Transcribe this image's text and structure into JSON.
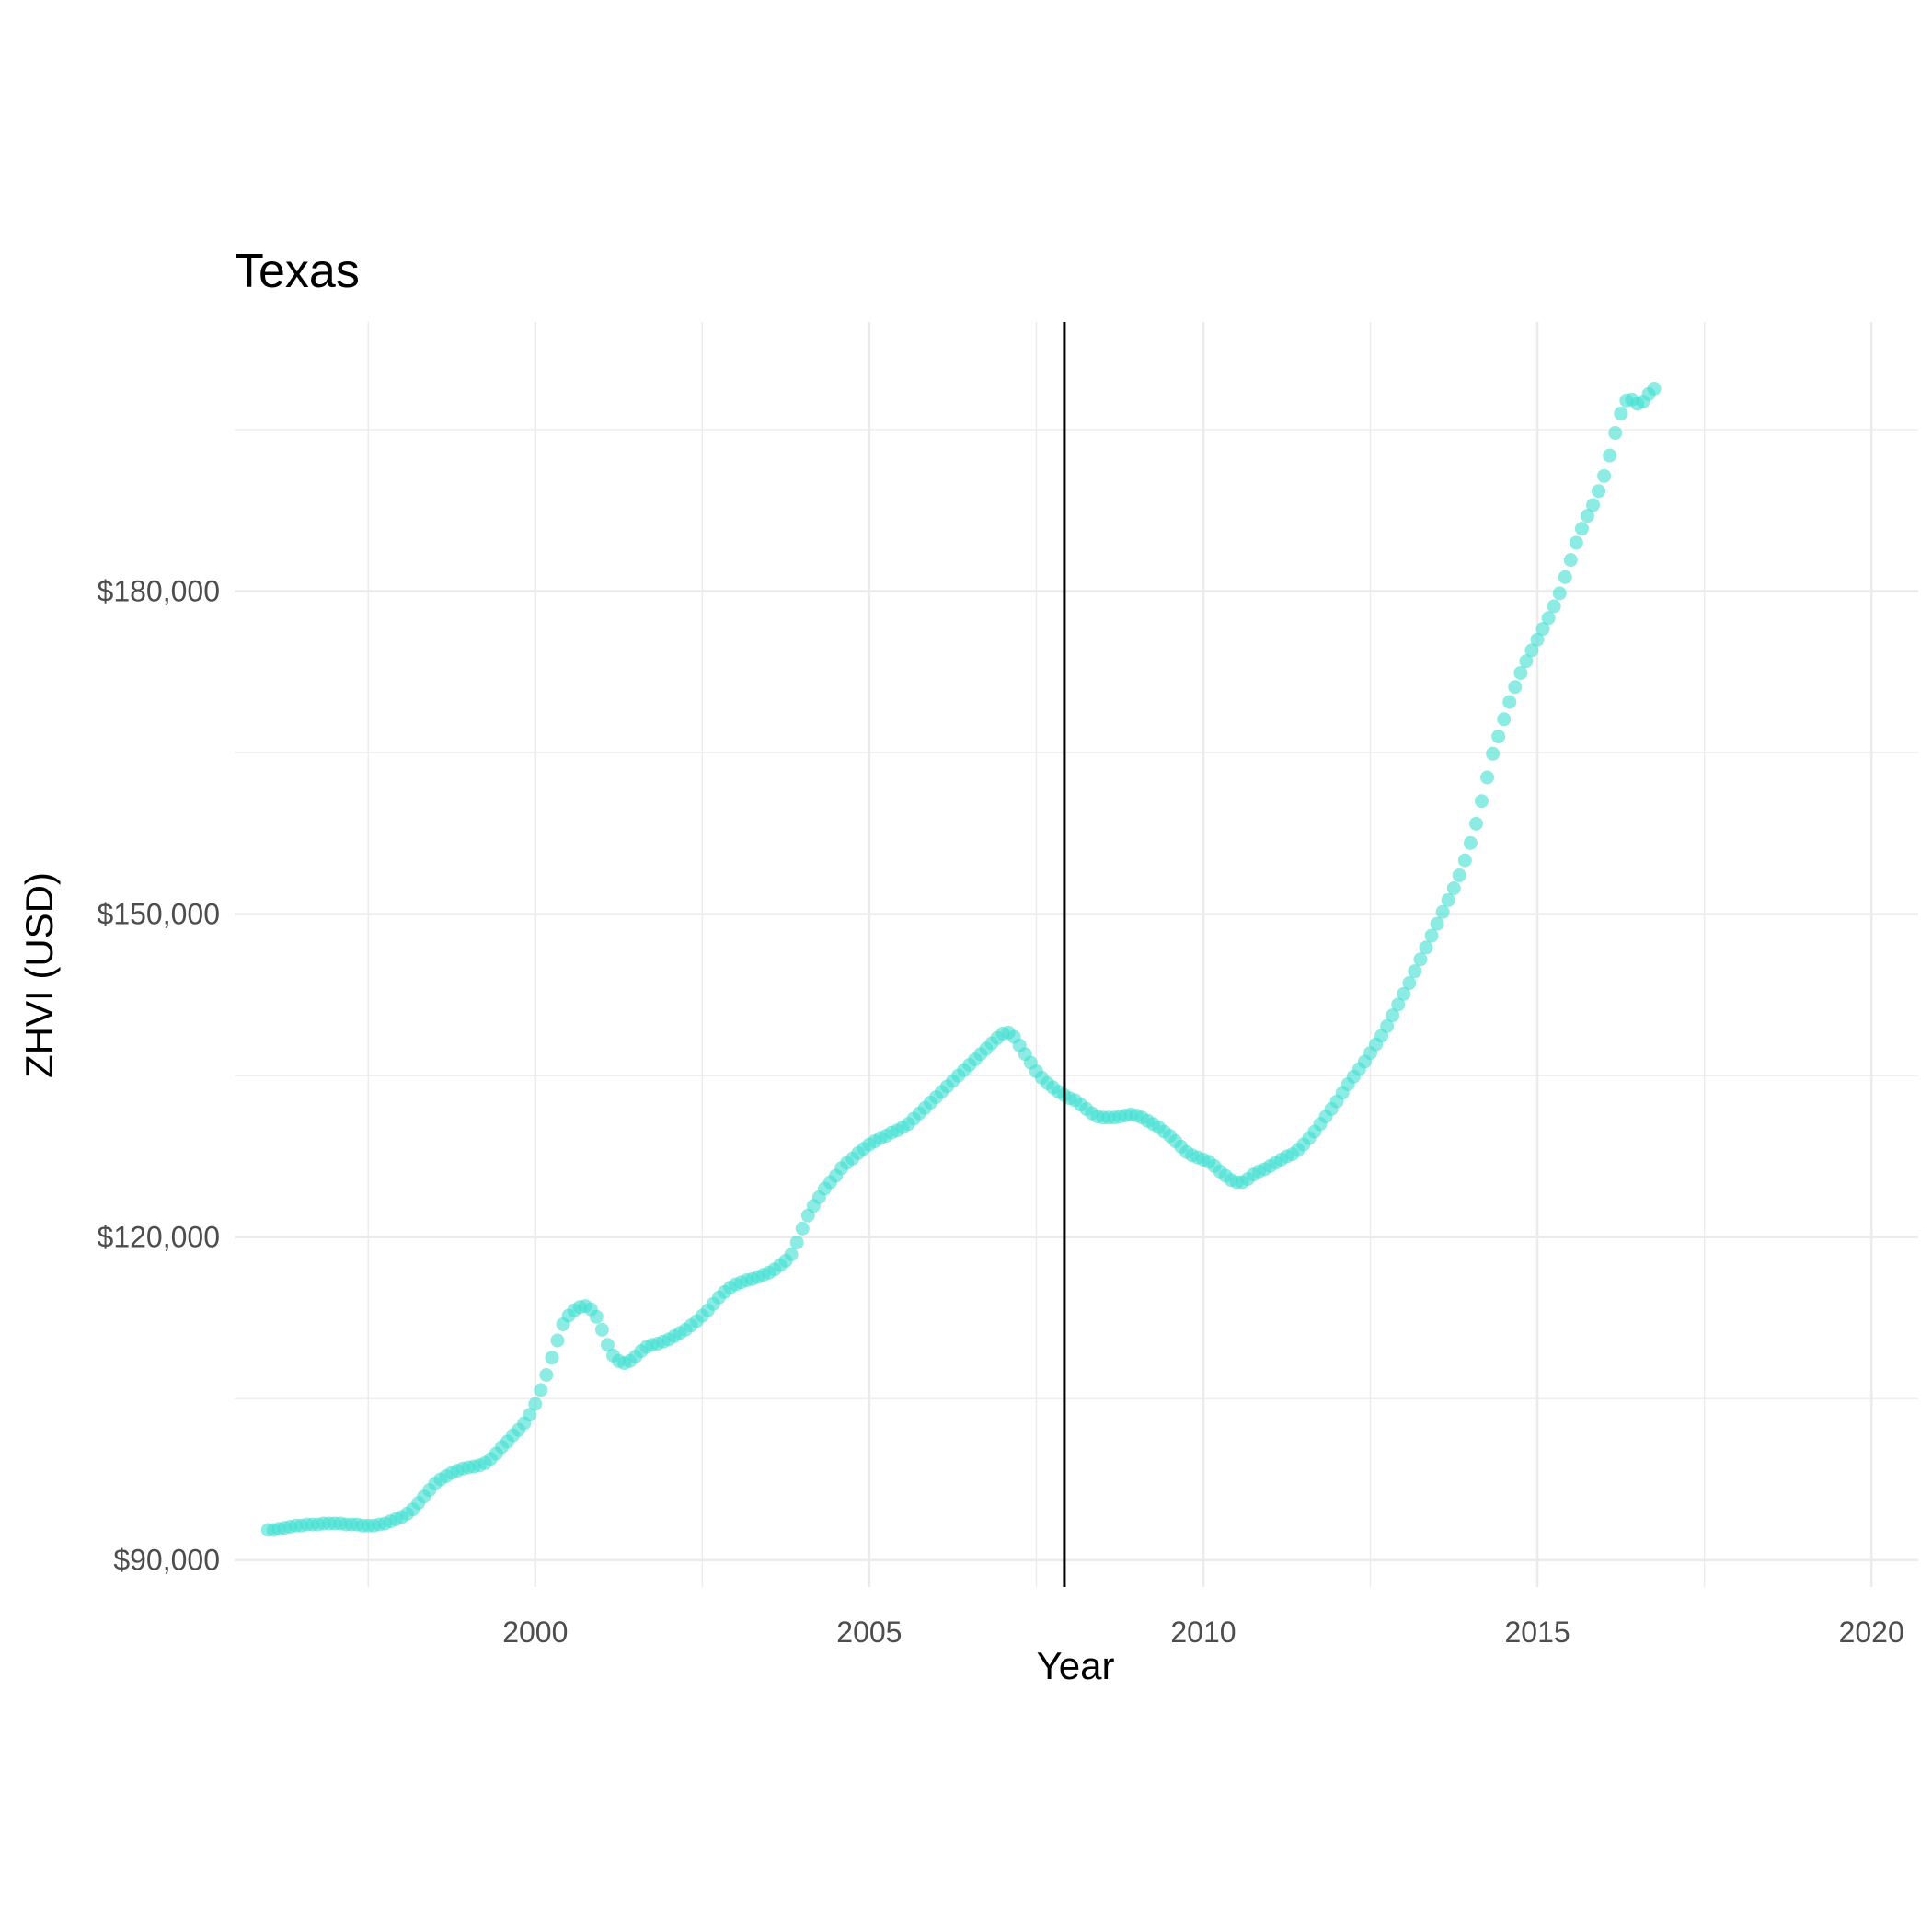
{
  "chart_data": {
    "type": "scatter",
    "title": "Texas",
    "xlabel": "Year",
    "ylabel": "ZHVI (USD)",
    "xlim": [
      1995.5,
      2020.7
    ],
    "ylim": [
      87500,
      205000
    ],
    "x_ticks": [
      2000,
      2005,
      2010,
      2015,
      2020
    ],
    "x_tick_labels": [
      "2000",
      "2005",
      "2010",
      "2015",
      "2020"
    ],
    "y_ticks": [
      90000,
      120000,
      150000,
      180000
    ],
    "y_tick_labels": [
      "$90,000",
      "$120,000",
      "$150,000",
      "$180,000"
    ],
    "grid": true,
    "point_color": "#40E0D0",
    "point_opacity": 0.6,
    "vline_x": 2007.92,
    "vline_color": "#000000",
    "frequency": "monthly",
    "x_start": 1996.0,
    "x_step": 0.08333,
    "values": [
      92800,
      92800,
      92900,
      93000,
      93100,
      93200,
      93200,
      93300,
      93300,
      93300,
      93400,
      93400,
      93400,
      93400,
      93300,
      93300,
      93300,
      93200,
      93200,
      93200,
      93300,
      93400,
      93600,
      93800,
      94000,
      94300,
      94700,
      95300,
      95900,
      96500,
      97100,
      97500,
      97800,
      98100,
      98300,
      98500,
      98600,
      98700,
      98800,
      99000,
      99400,
      99900,
      100500,
      101000,
      101600,
      102100,
      102700,
      103500,
      104500,
      105800,
      107200,
      108800,
      110400,
      111900,
      112700,
      113200,
      113500,
      113600,
      113300,
      112600,
      111400,
      110000,
      109000,
      108500,
      108300,
      108500,
      108900,
      109400,
      109800,
      110000,
      110100,
      110300,
      110500,
      110800,
      111100,
      111400,
      111800,
      112200,
      112700,
      113200,
      113800,
      114400,
      114900,
      115300,
      115600,
      115800,
      116000,
      116100,
      116300,
      116500,
      116700,
      117000,
      117400,
      117800,
      118400,
      119500,
      120800,
      122000,
      122900,
      123700,
      124500,
      125100,
      125700,
      126400,
      126900,
      127300,
      127800,
      128200,
      128600,
      128900,
      129200,
      129400,
      129700,
      129900,
      130200,
      130500,
      131000,
      131500,
      132000,
      132500,
      133000,
      133500,
      134000,
      134500,
      135000,
      135500,
      136000,
      136500,
      137000,
      137500,
      138000,
      138500,
      138900,
      139000,
      138600,
      137800,
      137000,
      136200,
      135400,
      134800,
      134300,
      133900,
      133500,
      133200,
      132900,
      132700,
      132300,
      131900,
      131500,
      131200,
      131100,
      131100,
      131100,
      131200,
      131300,
      131400,
      131300,
      131100,
      130800,
      130500,
      130200,
      129800,
      129400,
      128900,
      128400,
      127900,
      127600,
      127400,
      127200,
      127000,
      126600,
      126100,
      125700,
      125300,
      125100,
      125100,
      125400,
      125800,
      126100,
      126300,
      126600,
      126900,
      127200,
      127500,
      127700,
      128100,
      128600,
      129200,
      129800,
      130500,
      131200,
      131900,
      132600,
      133400,
      134200,
      134900,
      135600,
      136300,
      137100,
      137900,
      138700,
      139600,
      140600,
      141600,
      142600,
      143600,
      144700,
      145800,
      146900,
      148000,
      149100,
      150200,
      151300,
      152400,
      153600,
      155000,
      156600,
      158400,
      160500,
      162700,
      164900,
      166500,
      168100,
      169700,
      171100,
      172400,
      173500,
      174500,
      175500,
      176500,
      177500,
      178600,
      179800,
      181300,
      182900,
      184500,
      185800,
      187000,
      188000,
      189300,
      190700,
      192600,
      194700,
      196500,
      197700,
      197800,
      197400,
      197600,
      198300,
      198800
    ]
  }
}
